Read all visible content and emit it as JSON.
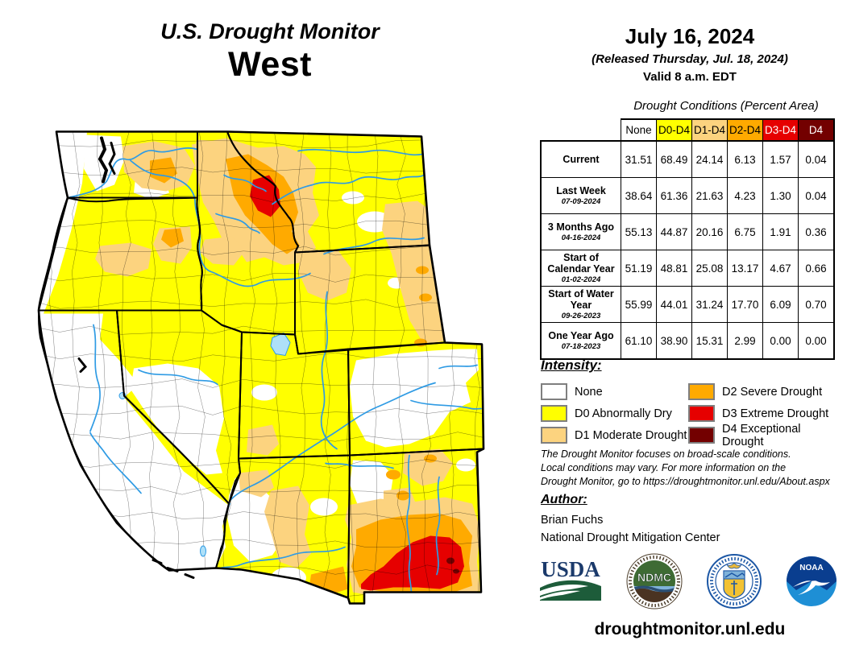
{
  "title": {
    "line1": "U.S. Drought Monitor",
    "region": "West"
  },
  "date_block": {
    "date": "July 16, 2024",
    "released": "(Released Thursday, Jul. 18, 2024)",
    "valid": "Valid 8 a.m. EDT"
  },
  "table": {
    "title": "Drought Conditions (Percent Area)",
    "columns": [
      "None",
      "D0-D4",
      "D1-D4",
      "D2-D4",
      "D3-D4",
      "D4"
    ],
    "rows": [
      {
        "label": "Current",
        "date": "",
        "values": [
          "31.51",
          "68.49",
          "24.14",
          "6.13",
          "1.57",
          "0.04"
        ]
      },
      {
        "label": "Last Week",
        "date": "07-09-2024",
        "values": [
          "38.64",
          "61.36",
          "21.63",
          "4.23",
          "1.30",
          "0.04"
        ]
      },
      {
        "label": "3 Months Ago",
        "date": "04-16-2024",
        "values": [
          "55.13",
          "44.87",
          "20.16",
          "6.75",
          "1.91",
          "0.36"
        ]
      },
      {
        "label": "Start of Calendar Year",
        "date": "01-02-2024",
        "values": [
          "51.19",
          "48.81",
          "25.08",
          "13.17",
          "4.67",
          "0.66"
        ]
      },
      {
        "label": "Start of Water Year",
        "date": "09-26-2023",
        "values": [
          "55.99",
          "44.01",
          "31.24",
          "17.70",
          "6.09",
          "0.70"
        ]
      },
      {
        "label": "One Year Ago",
        "date": "07-18-2023",
        "values": [
          "61.10",
          "38.90",
          "15.31",
          "2.99",
          "0.00",
          "0.00"
        ]
      }
    ]
  },
  "legend": {
    "title": "Intensity:",
    "items": [
      {
        "label": "None",
        "color": "#FFFFFF"
      },
      {
        "label": "D0 Abnormally Dry",
        "color": "#FFFF00"
      },
      {
        "label": "D1 Moderate Drought",
        "color": "#FCD37F"
      },
      {
        "label": "D2 Severe Drought",
        "color": "#FFAA00"
      },
      {
        "label": "D3 Extreme Drought",
        "color": "#E60000"
      },
      {
        "label": "D4 Exceptional Drought",
        "color": "#730000"
      }
    ]
  },
  "disclaimer": [
    "The Drought Monitor focuses on broad-scale conditions.",
    "Local conditions may vary. For more information on the",
    "Drought Monitor, go to https://droughtmonitor.unl.edu/About.aspx"
  ],
  "author": {
    "heading": "Author:",
    "name": "Brian Fuchs",
    "org": "National Drought Mitigation Center"
  },
  "footer": {
    "url": "droughtmonitor.unl.edu",
    "logos": [
      "USDA",
      "NDMC",
      "Department of Commerce",
      "NOAA"
    ],
    "usda_text": "USDA",
    "ndmc_text": "NDMC",
    "noaa_text": "NOAA"
  },
  "map": {
    "type": "choropleth",
    "region": "Western United States",
    "states_depicted": [
      "Washington",
      "Oregon",
      "California",
      "Idaho",
      "Nevada",
      "Montana",
      "Wyoming",
      "Utah",
      "Colorado",
      "Arizona",
      "New Mexico"
    ],
    "palette": {
      "none": "#FFFFFF",
      "d0": "#FFFF00",
      "d1": "#FCD37F",
      "d2": "#FFAA00",
      "d3": "#E60000",
      "d4": "#730000",
      "river": "#2F9BE4",
      "lake": "#AEE0F8",
      "border": "#000000"
    }
  }
}
